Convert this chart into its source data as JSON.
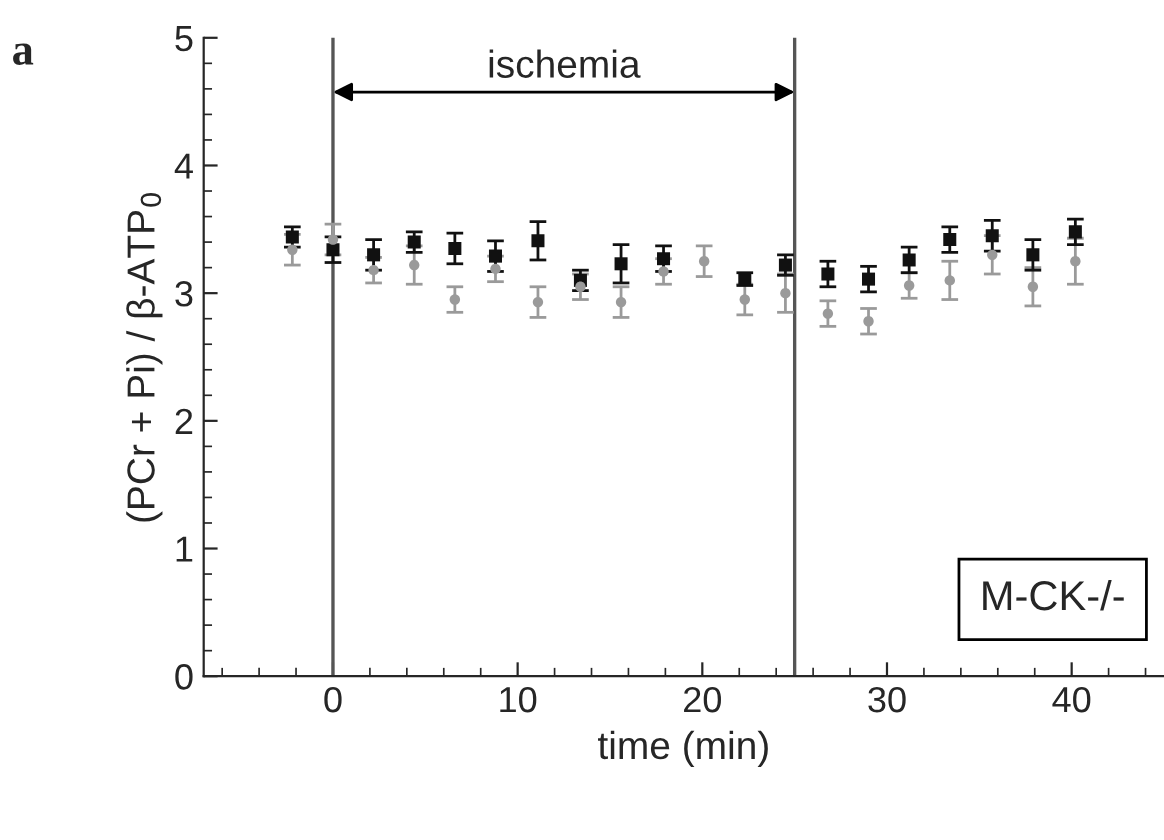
{
  "chart_data": {
    "type": "scatter",
    "xlabel": "time (min)",
    "ylabel": "(PCr + Pi) / β-ATP$_{0}$",
    "xlim": [
      -7,
      45
    ],
    "xticks": [
      0,
      10,
      20,
      30,
      40
    ],
    "ylim": [
      0,
      5
    ],
    "yticks": [
      0,
      1,
      2,
      3,
      4,
      5
    ],
    "x": [
      -2.2,
      0,
      2.2,
      4.4,
      6.6,
      8.8,
      11.1,
      13.4,
      15.6,
      17.9,
      20.1,
      22.3,
      24.5,
      26.8,
      29,
      31.2,
      33.4,
      35.7,
      37.9,
      40.2
    ],
    "series": [
      {
        "color": "#9a9a9a",
        "marker": "circle",
        "values": [
          3.34,
          3.42,
          3.18,
          3.22,
          2.95,
          3.19,
          2.93,
          3.05,
          2.93,
          3.17,
          3.25,
          2.95,
          3.0,
          2.84,
          2.78,
          3.06,
          3.1,
          3.3,
          3.05,
          3.25
        ],
        "errors": [
          0.12,
          0.12,
          0.1,
          0.15,
          0.1,
          0.1,
          0.12,
          0.1,
          0.12,
          0.1,
          0.12,
          0.12,
          0.15,
          0.1,
          0.1,
          0.1,
          0.15,
          0.15,
          0.15,
          0.18
        ]
      },
      {
        "color": "#111111",
        "marker": "square",
        "values": [
          3.44,
          3.34,
          3.3,
          3.4,
          3.35,
          3.29,
          3.41,
          3.1,
          3.23,
          3.27,
          null,
          3.11,
          3.22,
          3.15,
          3.11,
          3.26,
          3.42,
          3.45,
          3.3,
          3.48
        ],
        "errors": [
          0.08,
          0.1,
          0.12,
          0.08,
          0.12,
          0.12,
          0.15,
          0.08,
          0.15,
          0.1,
          null,
          0.05,
          0.08,
          0.1,
          0.1,
          0.1,
          0.1,
          0.12,
          0.12,
          0.1
        ]
      }
    ],
    "ref_lines": [
      {
        "axis": "x",
        "value": 0,
        "color": "#555555"
      },
      {
        "axis": "x",
        "value": 25,
        "color": "#555555"
      }
    ],
    "annotations": [
      "ischemia",
      "M-CK-/-",
      "a"
    ],
    "grid": false,
    "legend": false
  }
}
